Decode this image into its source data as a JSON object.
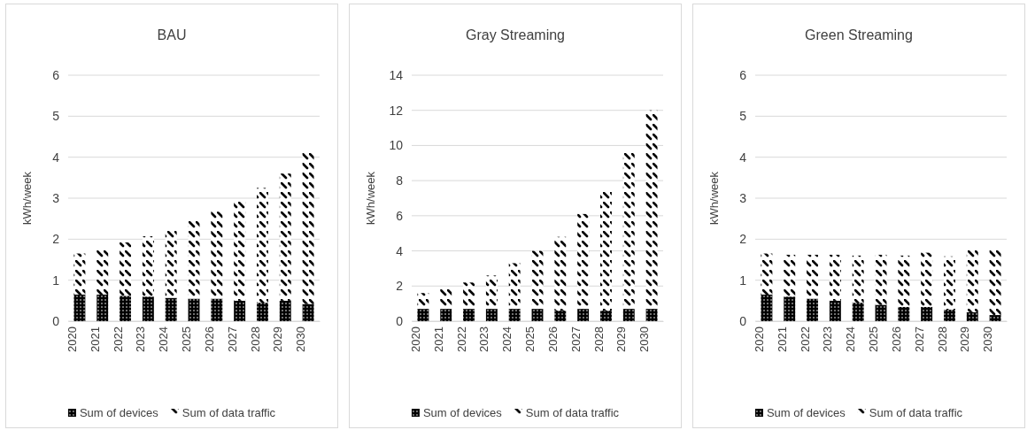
{
  "chart_data": [
    {
      "type": "bar",
      "title": "BAU",
      "ylabel": "kWh/week",
      "stacked": true,
      "grid": "y",
      "legend": "bottom",
      "categories": [
        "2020",
        "2021",
        "2022",
        "2023",
        "2024",
        "2025",
        "2026",
        "2027",
        "2028",
        "2029",
        "2030"
      ],
      "ylim": [
        0,
        6
      ],
      "yticks": [
        0,
        1,
        2,
        3,
        4,
        5,
        6
      ],
      "series": [
        {
          "name": "Sum of devices",
          "color": "#000000",
          "values": [
            0.65,
            0.65,
            0.62,
            0.6,
            0.57,
            0.55,
            0.55,
            0.5,
            0.45,
            0.5,
            0.42
          ]
        },
        {
          "name": "Sum of data traffic",
          "color": "#000000",
          "values": [
            1.0,
            1.13,
            1.3,
            1.47,
            1.66,
            1.89,
            2.12,
            2.44,
            2.8,
            3.1,
            3.68
          ]
        }
      ]
    },
    {
      "type": "bar",
      "title": "Gray Streaming",
      "ylabel": "kWh/week",
      "stacked": true,
      "grid": "y",
      "legend": "bottom",
      "categories": [
        "2020",
        "2021",
        "2022",
        "2023",
        "2024",
        "2025",
        "2026",
        "2027",
        "2028",
        "2029",
        "2030"
      ],
      "ylim": [
        0,
        14
      ],
      "yticks": [
        0,
        2,
        4,
        6,
        8,
        10,
        12,
        14
      ],
      "series": [
        {
          "name": "Sum of devices",
          "color": "#000000",
          "values": [
            0.7,
            0.7,
            0.7,
            0.7,
            0.7,
            0.7,
            0.6,
            0.7,
            0.6,
            0.7,
            0.7
          ]
        },
        {
          "name": "Sum of data traffic",
          "color": "#000000",
          "values": [
            0.9,
            1.2,
            1.5,
            1.9,
            2.6,
            3.3,
            4.2,
            5.4,
            6.9,
            8.9,
            11.3
          ]
        }
      ]
    },
    {
      "type": "bar",
      "title": "Green Streaming",
      "ylabel": "kWh/week",
      "stacked": true,
      "grid": "y",
      "legend": "bottom",
      "categories": [
        "2020",
        "2021",
        "2022",
        "2023",
        "2024",
        "2025",
        "2026",
        "2027",
        "2028",
        "2029",
        "2030"
      ],
      "ylim": [
        0,
        6
      ],
      "yticks": [
        0,
        1,
        2,
        3,
        4,
        5,
        6
      ],
      "series": [
        {
          "name": "Sum of devices",
          "color": "#000000",
          "values": [
            0.65,
            0.6,
            0.55,
            0.5,
            0.45,
            0.4,
            0.35,
            0.35,
            0.28,
            0.22,
            0.15
          ]
        },
        {
          "name": "Sum of data traffic",
          "color": "#000000",
          "values": [
            1.0,
            1.02,
            1.07,
            1.12,
            1.15,
            1.22,
            1.25,
            1.32,
            1.3,
            1.53,
            1.62
          ]
        }
      ]
    }
  ]
}
